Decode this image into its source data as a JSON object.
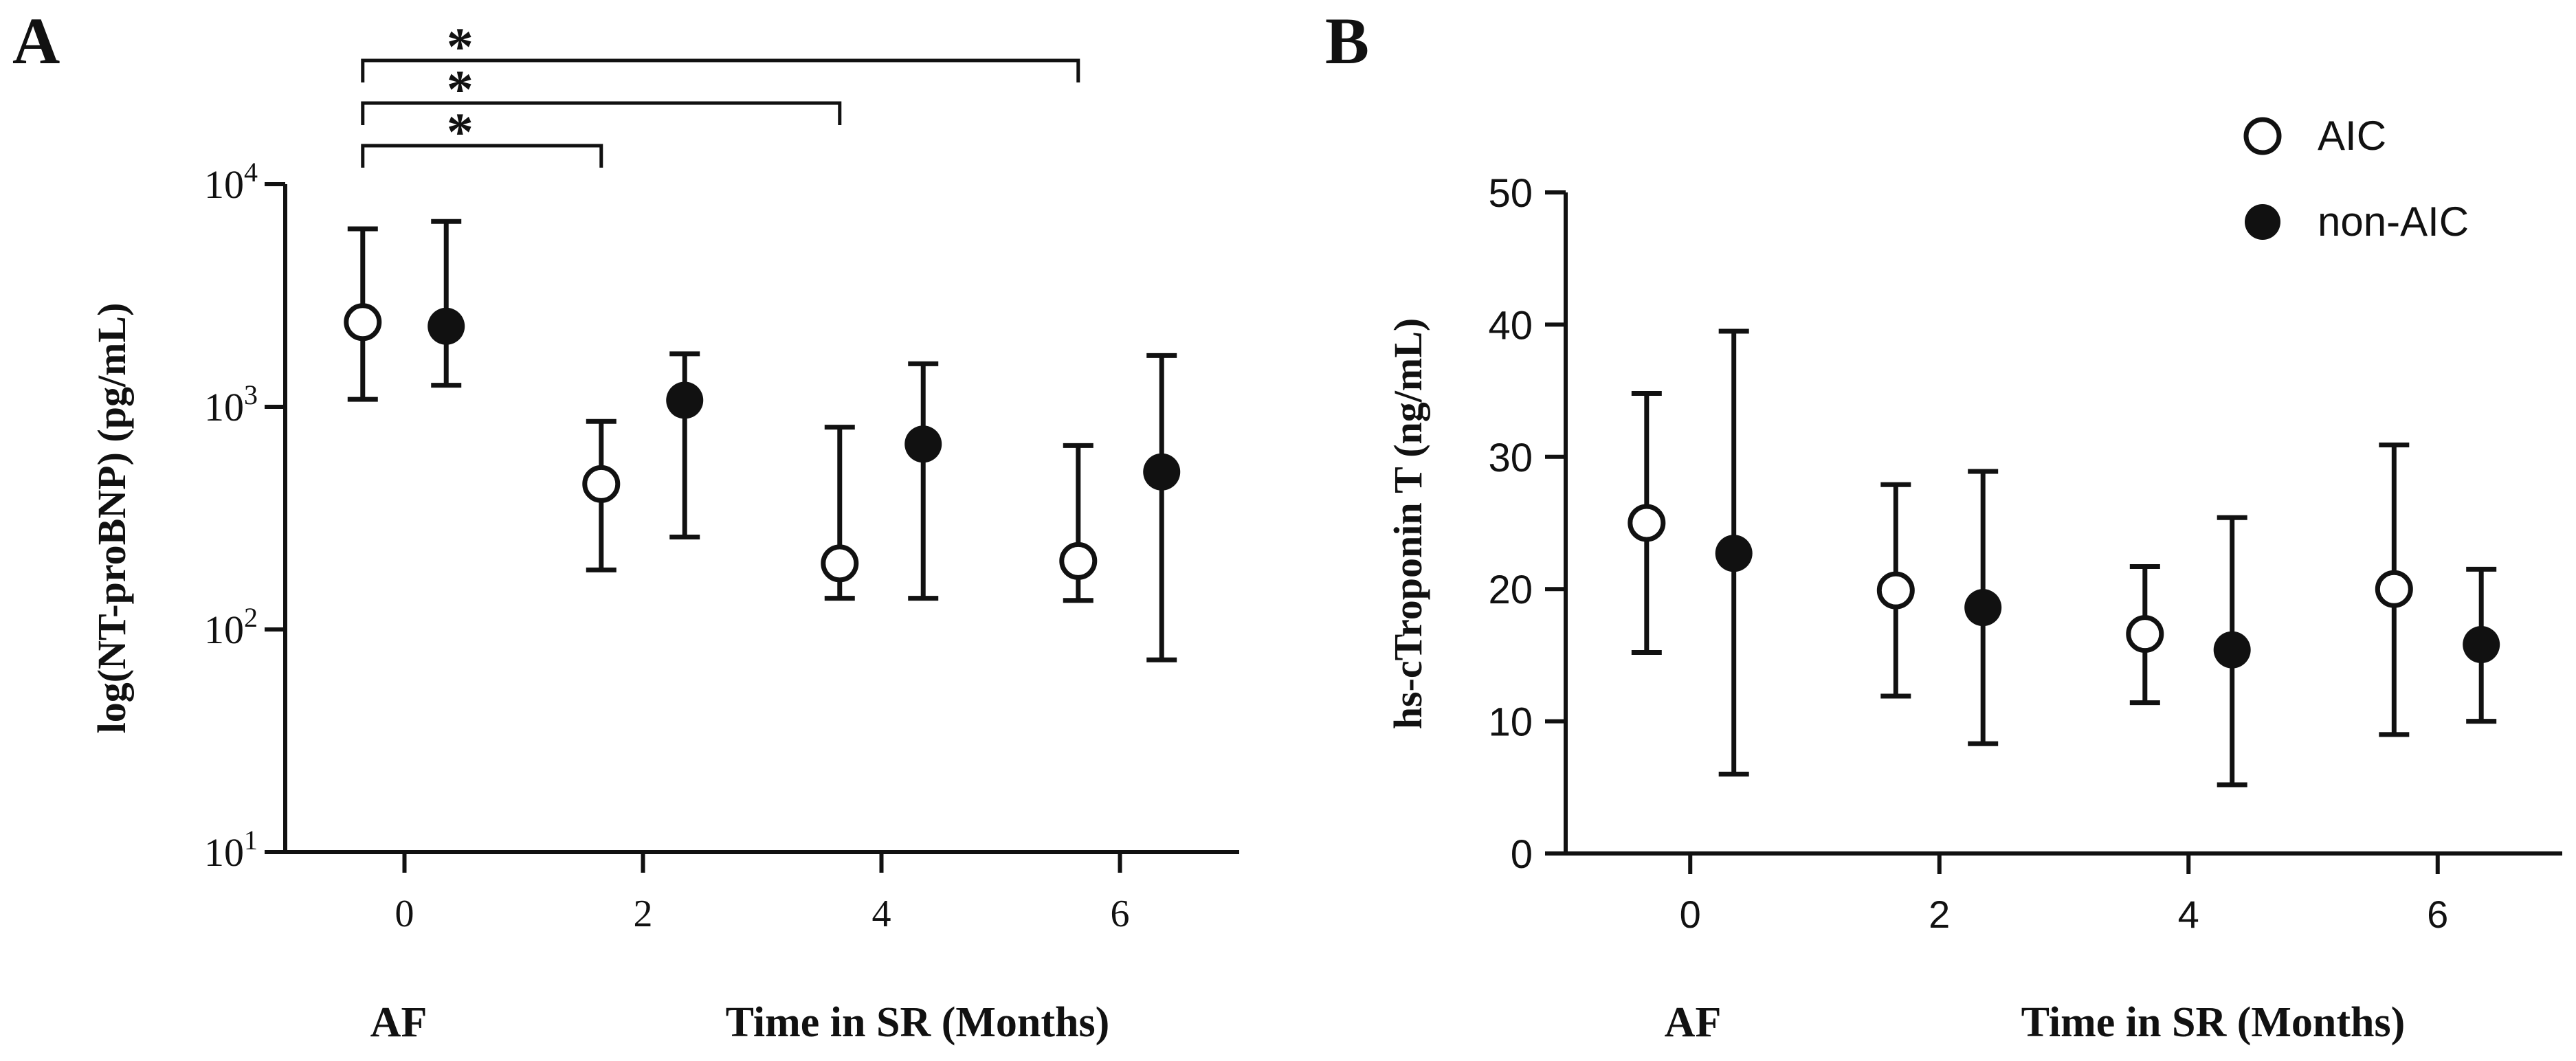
{
  "colors": {
    "ink": "#111111",
    "open_fill": "#ffffff",
    "filled": "#111111"
  },
  "panels": {
    "A": {
      "letter": "A",
      "x_under_label": "AF",
      "x_title": "Time in SR (Months)"
    },
    "B": {
      "letter": "B",
      "x_under_label": "AF",
      "x_title": "Time in SR (Months)"
    }
  },
  "chart_data": [
    {
      "type": "scatter",
      "panel": "A",
      "scale": "log",
      "ylabel": "log(NT-proBNP) (pg/mL)",
      "xlabel": "Time in SR (Months)",
      "ylim": [
        10,
        10000
      ],
      "xlim": [
        -1,
        7
      ],
      "x_ticks": [
        0,
        2,
        4,
        6
      ],
      "x_tick_labels": [
        "0",
        "2",
        "4",
        "6"
      ],
      "y_ticks": [
        {
          "value": 10,
          "base": "10",
          "exp": "1"
        },
        {
          "value": 100,
          "base": "10",
          "exp": "2"
        },
        {
          "value": 1000,
          "base": "10",
          "exp": "3"
        },
        {
          "value": 10000,
          "base": "10",
          "exp": "4"
        }
      ],
      "series": [
        {
          "name": "AIC",
          "marker": "open",
          "x_offset": -0.35,
          "points": [
            {
              "x": 0,
              "y": 2400,
              "low": 1080,
              "high": 6300
            },
            {
              "x": 2,
              "y": 450,
              "low": 185,
              "high": 860
            },
            {
              "x": 4,
              "y": 198,
              "low": 138,
              "high": 810
            },
            {
              "x": 6,
              "y": 203,
              "low": 135,
              "high": 670
            }
          ]
        },
        {
          "name": "non-AIC",
          "marker": "filled",
          "x_offset": 0.35,
          "points": [
            {
              "x": 0,
              "y": 2300,
              "low": 1250,
              "high": 6800
            },
            {
              "x": 2,
              "y": 1070,
              "low": 260,
              "high": 1730
            },
            {
              "x": 4,
              "y": 680,
              "low": 138,
              "high": 1560
            },
            {
              "x": 6,
              "y": 510,
              "low": 73,
              "high": 1700
            }
          ]
        }
      ],
      "annotations": [
        {
          "from": 0,
          "to": 2,
          "text": "*"
        },
        {
          "from": 0,
          "to": 4,
          "text": "*"
        },
        {
          "from": 0,
          "to": 6,
          "text": "*"
        }
      ]
    },
    {
      "type": "scatter",
      "panel": "B",
      "scale": "linear",
      "ylabel": "hs-cTroponin T (ng/mL)",
      "xlabel": "Time in SR (Months)",
      "ylim": [
        0,
        50
      ],
      "xlim": [
        -1,
        7
      ],
      "x_ticks": [
        0,
        2,
        4,
        6
      ],
      "x_tick_labels": [
        "0",
        "2",
        "4",
        "6"
      ],
      "y_ticks": [
        0,
        10,
        20,
        30,
        40,
        50
      ],
      "y_tick_labels": [
        "0",
        "10",
        "20",
        "30",
        "40",
        "50"
      ],
      "legend": {
        "placement": "top-right",
        "entries": [
          "AIC",
          "non-AIC"
        ]
      },
      "series": [
        {
          "name": "AIC",
          "marker": "open",
          "x_offset": -0.35,
          "points": [
            {
              "x": 0,
              "y": 25,
              "low": 15.2,
              "high": 34.8
            },
            {
              "x": 2,
              "y": 19.9,
              "low": 11.9,
              "high": 27.9
            },
            {
              "x": 4,
              "y": 16.6,
              "low": 11.4,
              "high": 21.7
            },
            {
              "x": 6,
              "y": 20,
              "low": 9,
              "high": 30.9
            }
          ]
        },
        {
          "name": "non-AIC",
          "marker": "filled",
          "x_offset": 0.35,
          "points": [
            {
              "x": 0,
              "y": 22.7,
              "low": 6,
              "high": 39.5
            },
            {
              "x": 2,
              "y": 18.6,
              "low": 8.3,
              "high": 28.9
            },
            {
              "x": 4,
              "y": 15.4,
              "low": 5.2,
              "high": 25.4
            },
            {
              "x": 6,
              "y": 15.8,
              "low": 10,
              "high": 21.5
            }
          ]
        }
      ]
    }
  ]
}
